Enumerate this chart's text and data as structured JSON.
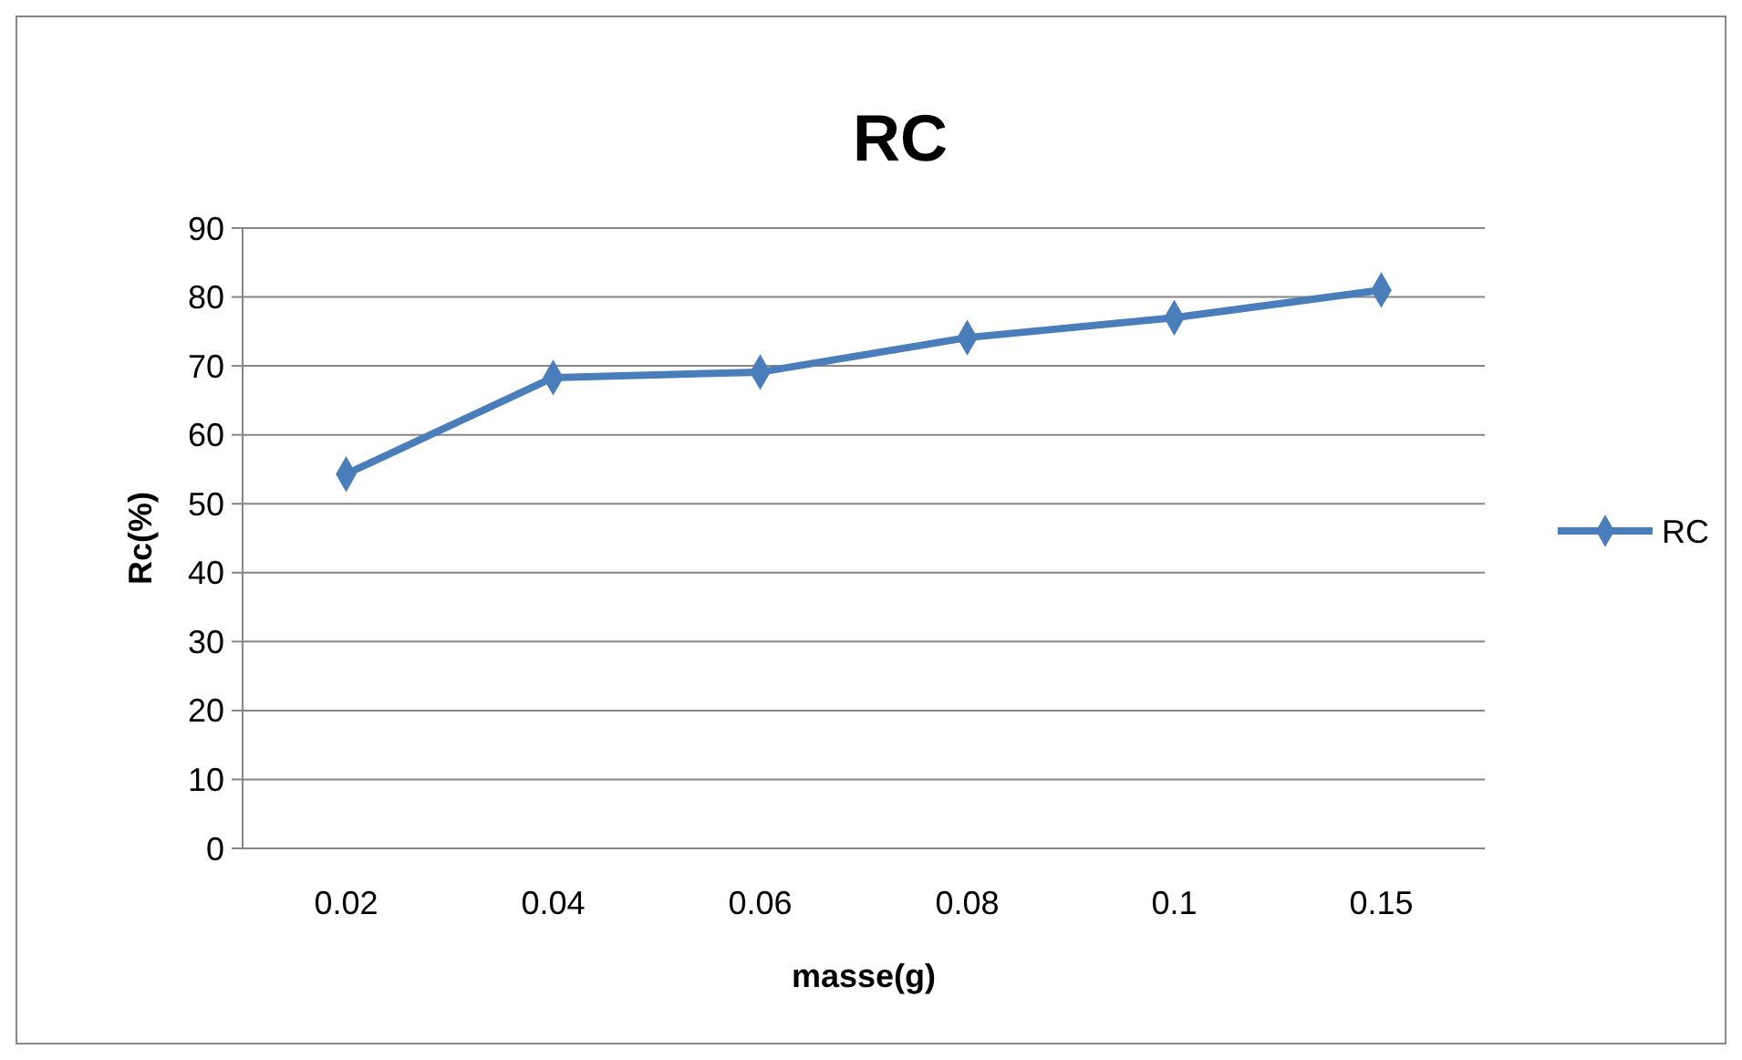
{
  "chart_data": {
    "type": "line",
    "title": "RC",
    "xlabel": "masse(g)",
    "ylabel": "Rc(%)",
    "categories": [
      "0.02",
      "0.04",
      "0.06",
      "0.08",
      "0.1",
      "0.15"
    ],
    "series": [
      {
        "name": "RC",
        "color": "#4a7ebb",
        "values": [
          54.3,
          68.3,
          69.1,
          74.1,
          77.0,
          81.0
        ]
      }
    ],
    "ylim": [
      0,
      90
    ],
    "yticks": [
      0,
      10,
      20,
      30,
      40,
      50,
      60,
      70,
      80,
      90
    ],
    "grid": "y",
    "legend": "right",
    "marker": "diamond",
    "line_style": "solid"
  }
}
